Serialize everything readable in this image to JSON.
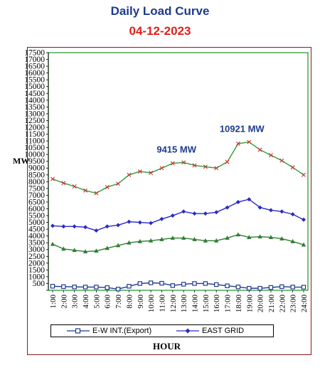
{
  "header": {
    "title": "Daily Load Curve",
    "date": "04-12-2023"
  },
  "chart_data": {
    "type": "line",
    "xlabel": "HOUR",
    "ylabel": "MW",
    "ylim": [
      0,
      17500
    ],
    "ytick_step": 500,
    "grid": false,
    "legend_position": "bottom",
    "categories": [
      "1:00",
      "2:00",
      "3:00",
      "4:00",
      "5:00",
      "6:00",
      "7:00",
      "8:00",
      "9:00",
      "10:00",
      "11:00",
      "12:00",
      "13:00",
      "14:00",
      "15:00",
      "16:00",
      "17:00",
      "18:00",
      "19:00",
      "20:00",
      "21:00",
      "22:00",
      "23:00",
      "24:00"
    ],
    "series": [
      {
        "name": "E-W INT.(Export)",
        "color": "#1f3b8c",
        "marker": "square-open",
        "values": [
          300,
          270,
          250,
          240,
          240,
          200,
          90,
          300,
          500,
          550,
          520,
          350,
          450,
          500,
          500,
          420,
          330,
          250,
          150,
          150,
          210,
          270,
          240,
          230
        ]
      },
      {
        "name": "EAST GRID",
        "color": "#2a2ac8",
        "marker": "diamond",
        "values": [
          4750,
          4700,
          4700,
          4650,
          4400,
          4700,
          4800,
          5050,
          5000,
          4950,
          5250,
          5500,
          5800,
          5650,
          5650,
          5750,
          6100,
          6500,
          6700,
          6100,
          5900,
          5800,
          5600,
          5200
        ]
      },
      {
        "name": "",
        "color": "#2e7d32",
        "marker": "triangle",
        "values": [
          3400,
          3050,
          2950,
          2850,
          2900,
          3100,
          3300,
          3500,
          3600,
          3650,
          3750,
          3850,
          3850,
          3750,
          3650,
          3650,
          3850,
          4100,
          3900,
          3950,
          3900,
          3800,
          3600,
          3350
        ]
      },
      {
        "name": "",
        "color": "#2e9c3a",
        "marker": "star",
        "values": [
          8200,
          7900,
          7650,
          7350,
          7150,
          7600,
          7850,
          8500,
          8750,
          8650,
          9000,
          9350,
          9415,
          9200,
          9100,
          9000,
          9450,
          10800,
          10921,
          10350,
          9950,
          9550,
          9050,
          8500
        ]
      }
    ],
    "annotations": [
      {
        "text": "9415 MW",
        "series": 3,
        "index": 12
      },
      {
        "text": "10921 MW",
        "series": 3,
        "index": 18
      }
    ]
  }
}
